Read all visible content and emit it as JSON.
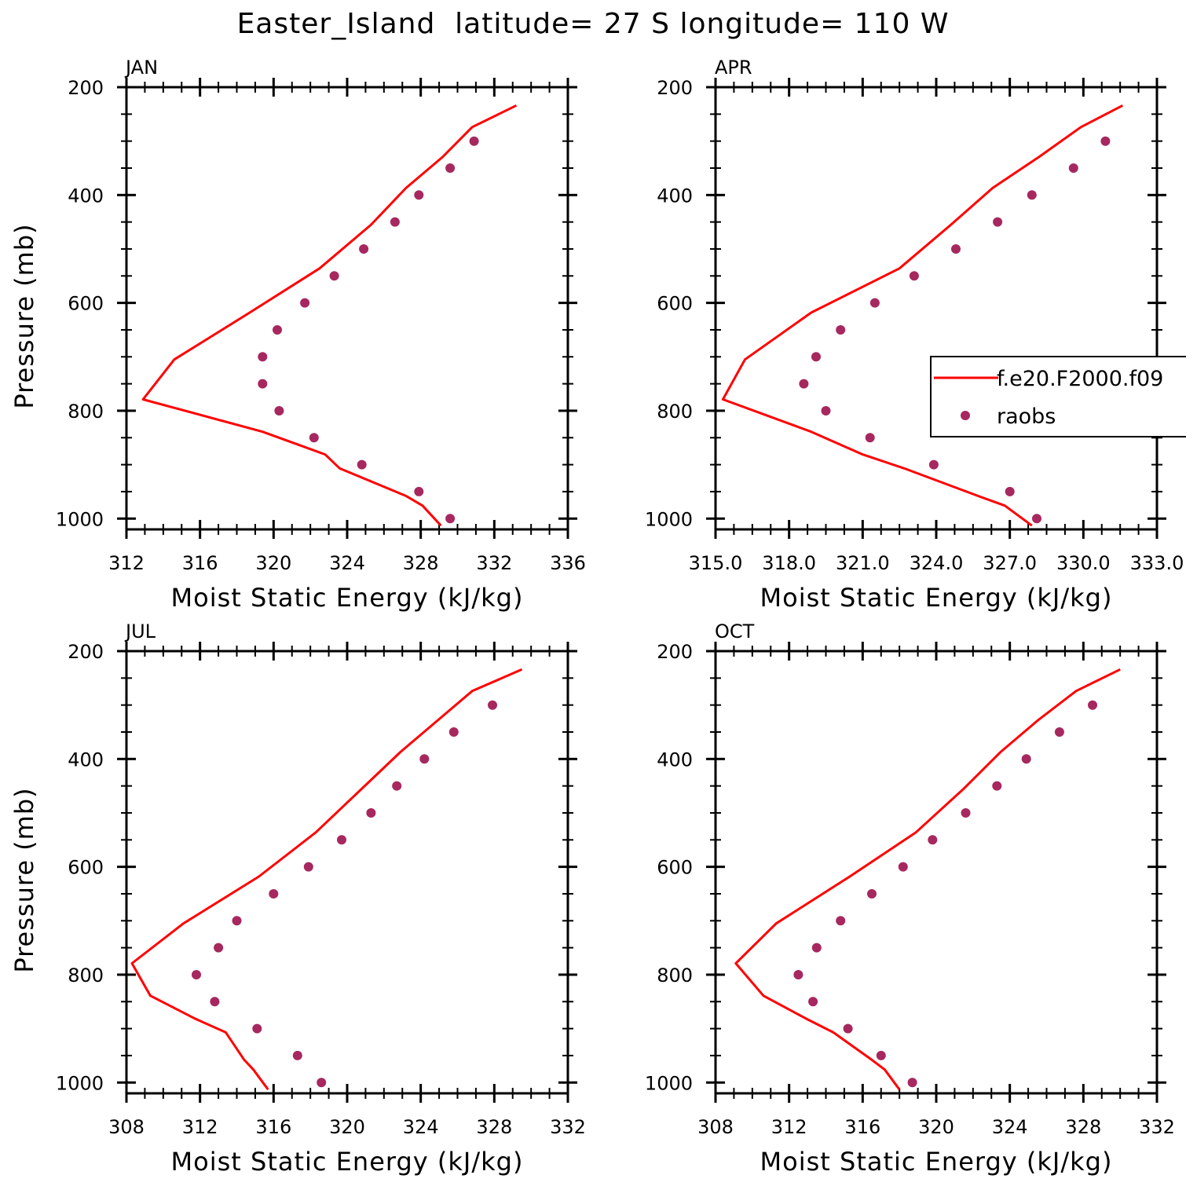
{
  "title": "Easter_Island  latitude= 27 S longitude= 110 W",
  "colors": {
    "model_line": "#ff0000",
    "raobs_marker": "#a6285f",
    "axis": "#000000"
  },
  "legend": {
    "entries": [
      {
        "label": "f.e20.F2000.f09",
        "style": "line"
      },
      {
        "label": "raobs",
        "style": "marker"
      }
    ]
  },
  "chart_data": [
    {
      "type": "line",
      "panel": "JAN",
      "xlabel": "Moist Static Energy (kJ/kg)",
      "ylabel": "Pressure (mb)",
      "xlim": [
        312,
        336
      ],
      "ylim": [
        1020,
        200
      ],
      "xticks": [
        312,
        316,
        320,
        324,
        328,
        332,
        336
      ],
      "xticklabels": [
        "312",
        "316",
        "320",
        "324",
        "328",
        "332",
        "336"
      ],
      "yticks": [
        200,
        400,
        600,
        800,
        1000
      ],
      "yticklabels": [
        "200",
        "400",
        "600",
        "800",
        "1000"
      ],
      "series": [
        {
          "name": "f.e20.F2000.f09",
          "style": "line",
          "x": [
            333.2,
            330.8,
            329.2,
            327.2,
            325.3,
            322.5,
            318.7,
            314.6,
            312.9,
            319.4,
            322.8,
            323.6,
            327.2,
            328.1,
            329.1
          ],
          "y": [
            234,
            274,
            329,
            387,
            455,
            536,
            618,
            705,
            779,
            839,
            881,
            907,
            958,
            976,
            1013
          ]
        },
        {
          "name": "raobs",
          "style": "marker",
          "x": [
            330.9,
            329.6,
            327.9,
            326.6,
            324.9,
            323.3,
            321.7,
            320.2,
            319.4,
            319.4,
            320.3,
            322.2,
            324.8,
            327.9,
            329.6
          ],
          "y": [
            300,
            350,
            400,
            450,
            500,
            550,
            600,
            650,
            700,
            750,
            800,
            850,
            900,
            950,
            1000
          ]
        }
      ]
    },
    {
      "type": "line",
      "panel": "APR",
      "xlabel": "Moist Static Energy (kJ/kg)",
      "ylabel": "",
      "xlim": [
        315,
        333
      ],
      "ylim": [
        1020,
        200
      ],
      "xticks": [
        315,
        318,
        321,
        324,
        327,
        330,
        333
      ],
      "xticklabels": [
        "315.0",
        "318.0",
        "321.0",
        "324.0",
        "327.0",
        "330.0",
        "333.0"
      ],
      "yticks": [
        200,
        400,
        600,
        800,
        1000
      ],
      "yticklabels": [
        "200",
        "400",
        "600",
        "800",
        "1000"
      ],
      "series": [
        {
          "name": "f.e20.F2000.f09",
          "style": "line",
          "x": [
            331.6,
            329.9,
            328.2,
            326.3,
            324.6,
            322.5,
            318.9,
            316.2,
            315.3,
            318.9,
            321.0,
            322.7,
            325.7,
            326.8,
            327.9
          ],
          "y": [
            234,
            274,
            329,
            387,
            455,
            536,
            618,
            705,
            779,
            839,
            881,
            907,
            958,
            976,
            1013
          ]
        },
        {
          "name": "raobs",
          "style": "marker",
          "x": [
            330.9,
            329.6,
            327.9,
            326.5,
            324.8,
            323.1,
            321.5,
            320.1,
            319.1,
            318.6,
            319.5,
            321.3,
            323.9,
            327.0,
            328.1
          ],
          "y": [
            300,
            350,
            400,
            450,
            500,
            550,
            600,
            650,
            700,
            750,
            800,
            850,
            900,
            950,
            1000
          ]
        }
      ]
    },
    {
      "type": "line",
      "panel": "JUL",
      "xlabel": "Moist Static Energy (kJ/kg)",
      "ylabel": "Pressure (mb)",
      "xlim": [
        308,
        332
      ],
      "ylim": [
        1020,
        200
      ],
      "xticks": [
        308,
        312,
        316,
        320,
        324,
        328,
        332
      ],
      "xticklabels": [
        "308",
        "312",
        "316",
        "320",
        "324",
        "328",
        "332"
      ],
      "yticks": [
        200,
        400,
        600,
        800,
        1000
      ],
      "yticklabels": [
        "200",
        "400",
        "600",
        "800",
        "1000"
      ],
      "series": [
        {
          "name": "f.e20.F2000.f09",
          "style": "line",
          "x": [
            329.5,
            326.8,
            324.9,
            322.9,
            320.8,
            318.3,
            315.2,
            311.1,
            308.3,
            309.3,
            311.7,
            313.4,
            314.4,
            314.9,
            315.7
          ],
          "y": [
            234,
            274,
            329,
            387,
            455,
            536,
            618,
            705,
            779,
            839,
            881,
            907,
            958,
            976,
            1013
          ]
        },
        {
          "name": "raobs",
          "style": "marker",
          "x": [
            327.9,
            325.8,
            324.2,
            322.7,
            321.3,
            319.7,
            317.9,
            316.0,
            314.0,
            313.0,
            311.8,
            312.8,
            315.1,
            317.3,
            318.6
          ],
          "y": [
            300,
            350,
            400,
            450,
            500,
            550,
            600,
            650,
            700,
            750,
            800,
            850,
            900,
            950,
            1000
          ]
        }
      ]
    },
    {
      "type": "line",
      "panel": "OCT",
      "xlabel": "Moist Static Energy (kJ/kg)",
      "ylabel": "",
      "xlim": [
        308,
        332
      ],
      "ylim": [
        1020,
        200
      ],
      "xticks": [
        308,
        312,
        316,
        320,
        324,
        328,
        332
      ],
      "xticklabels": [
        "308",
        "312",
        "316",
        "320",
        "324",
        "328",
        "332"
      ],
      "yticks": [
        200,
        400,
        600,
        800,
        1000
      ],
      "yticklabels": [
        "200",
        "400",
        "600",
        "800",
        "1000"
      ],
      "series": [
        {
          "name": "f.e20.F2000.f09",
          "style": "line",
          "x": [
            330.0,
            327.6,
            325.5,
            323.5,
            321.5,
            318.9,
            315.3,
            311.3,
            309.1,
            310.6,
            312.9,
            314.4,
            316.5,
            317.2,
            318.0
          ],
          "y": [
            234,
            274,
            329,
            387,
            455,
            536,
            618,
            705,
            779,
            839,
            881,
            907,
            958,
            976,
            1013
          ]
        },
        {
          "name": "raobs",
          "style": "marker",
          "x": [
            328.5,
            326.7,
            324.9,
            323.3,
            321.6,
            319.8,
            318.2,
            316.5,
            314.8,
            313.5,
            312.5,
            313.3,
            315.2,
            317.0,
            318.7
          ],
          "y": [
            300,
            350,
            400,
            450,
            500,
            550,
            600,
            650,
            700,
            750,
            800,
            850,
            900,
            950,
            1000
          ]
        }
      ]
    }
  ]
}
